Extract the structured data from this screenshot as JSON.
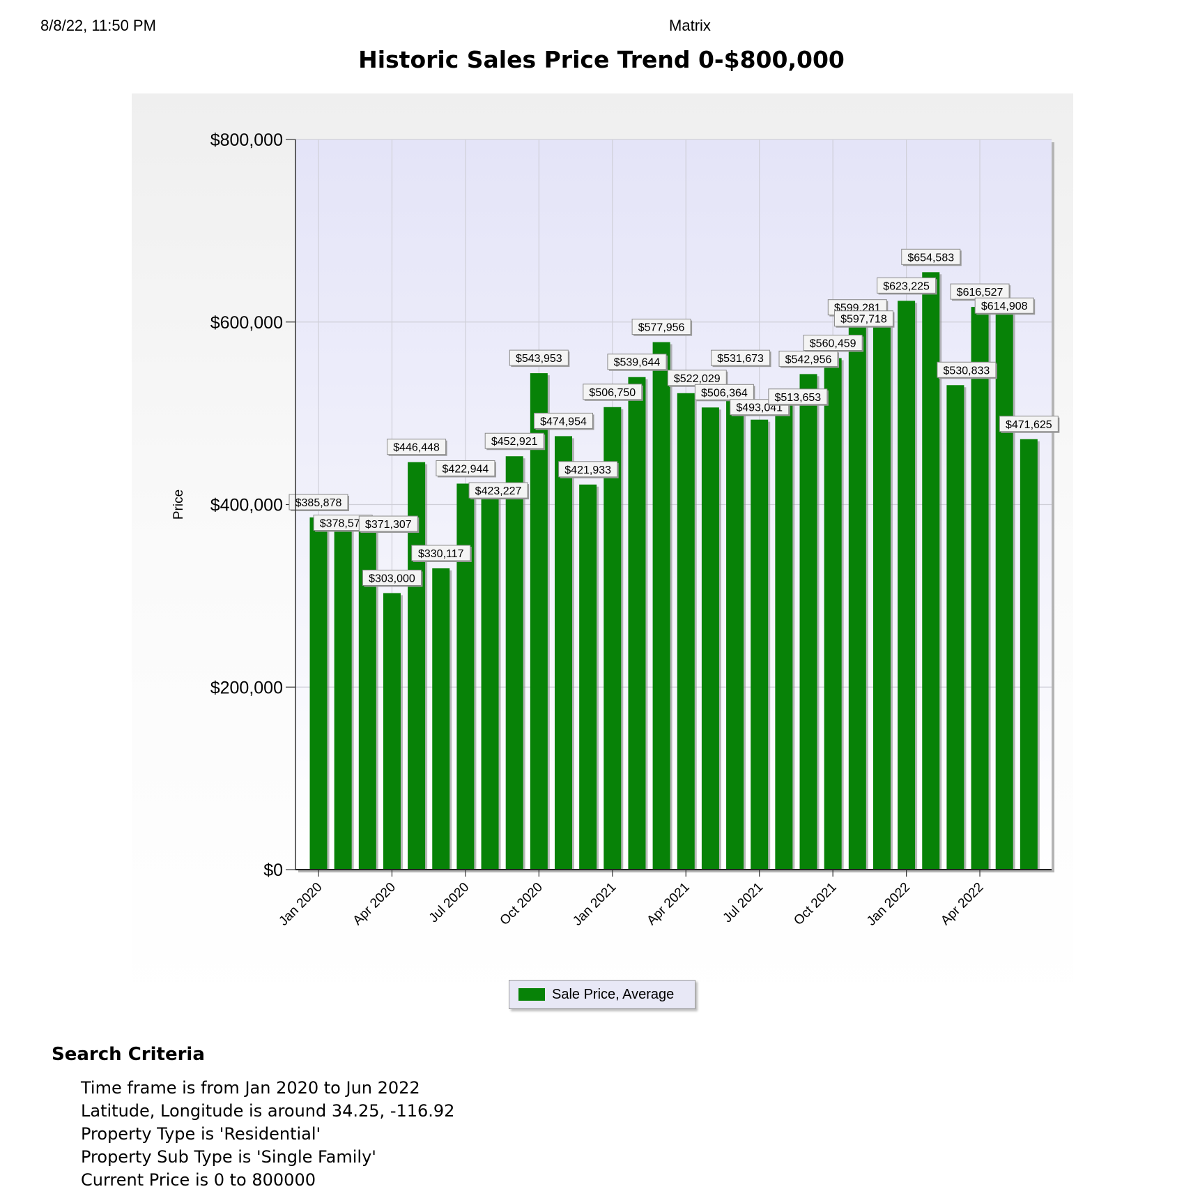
{
  "header": {
    "date": "8/8/22, 11:50 PM",
    "app": "Matrix"
  },
  "title": "Historic Sales Price Trend 0-$800,000",
  "chart_data": {
    "type": "bar",
    "title": "Historic Sales Price Trend 0-$800,000",
    "ylabel": "Price",
    "xlabel": "",
    "ylim": [
      0,
      800000
    ],
    "yticks": [
      0,
      200000,
      400000,
      600000,
      800000
    ],
    "ytick_labels": [
      "$0",
      "$200,000",
      "$400,000",
      "$600,000",
      "$800,000"
    ],
    "xtick_labels": [
      "Jan 2020",
      "Apr 2020",
      "Jul 2020",
      "Oct 2020",
      "Jan 2021",
      "Apr 2021",
      "Jul 2021",
      "Oct 2021",
      "Jan 2022",
      "Apr 2022"
    ],
    "categories": [
      "Jan 2020",
      "Feb 2020",
      "Mar 2020",
      "Apr 2020",
      "May 2020",
      "Jun 2020",
      "Jul 2020",
      "Aug 2020",
      "Sep 2020",
      "Oct 2020",
      "Nov 2020",
      "Dec 2020",
      "Jan 2021",
      "Feb 2021",
      "Mar 2021",
      "Apr 2021",
      "May 2021",
      "Jun 2021",
      "Jul 2021",
      "Aug 2021",
      "Sep 2021",
      "Oct 2021",
      "Nov 2021",
      "Dec 2021",
      "Jan 2022",
      "Feb 2022",
      "Mar 2022",
      "Apr 2022",
      "May 2022",
      "Jun 2022"
    ],
    "series": [
      {
        "name": "Sale Price, Average",
        "color": "#078207",
        "values": [
          385878,
          378571,
          371307,
          303000,
          446448,
          330117,
          422944,
          423227,
          452921,
          543953,
          474954,
          421933,
          506750,
          539644,
          577956,
          522029,
          506364,
          531673,
          493041,
          513653,
          542956,
          560459,
          599281,
          597718,
          623225,
          654583,
          530833,
          616527,
          614908,
          471625
        ],
        "labels": [
          "$385,878",
          "$378,571",
          "$371,307",
          "$303,000",
          "$446,448",
          "$330,117",
          "$422,944",
          "$423,227",
          "$452,921",
          "$543,953",
          "$474,954",
          "$421,933",
          "$506,750",
          "$539,644",
          "$577,956",
          "$522,029",
          "$506,364",
          "$531,673",
          "$493,041",
          "$513,653",
          "$542,956",
          "$560,459",
          "$599,281",
          "$597,718",
          "$623,225",
          "$654,583",
          "$530,833",
          "$616,527",
          "$614,908",
          "$471,625"
        ]
      }
    ],
    "grid": true,
    "legend": "bottom-center"
  },
  "legend": {
    "label": "Sale Price, Average"
  },
  "criteria": {
    "title": "Search Criteria",
    "items": [
      "Time frame is from Jan 2020 to Jun 2022",
      "Latitude, Longitude is around 34.25, -116.92",
      "Property Type is 'Residential'",
      "Property Sub Type is 'Single Family'",
      "Current Price is 0 to 800000"
    ]
  }
}
